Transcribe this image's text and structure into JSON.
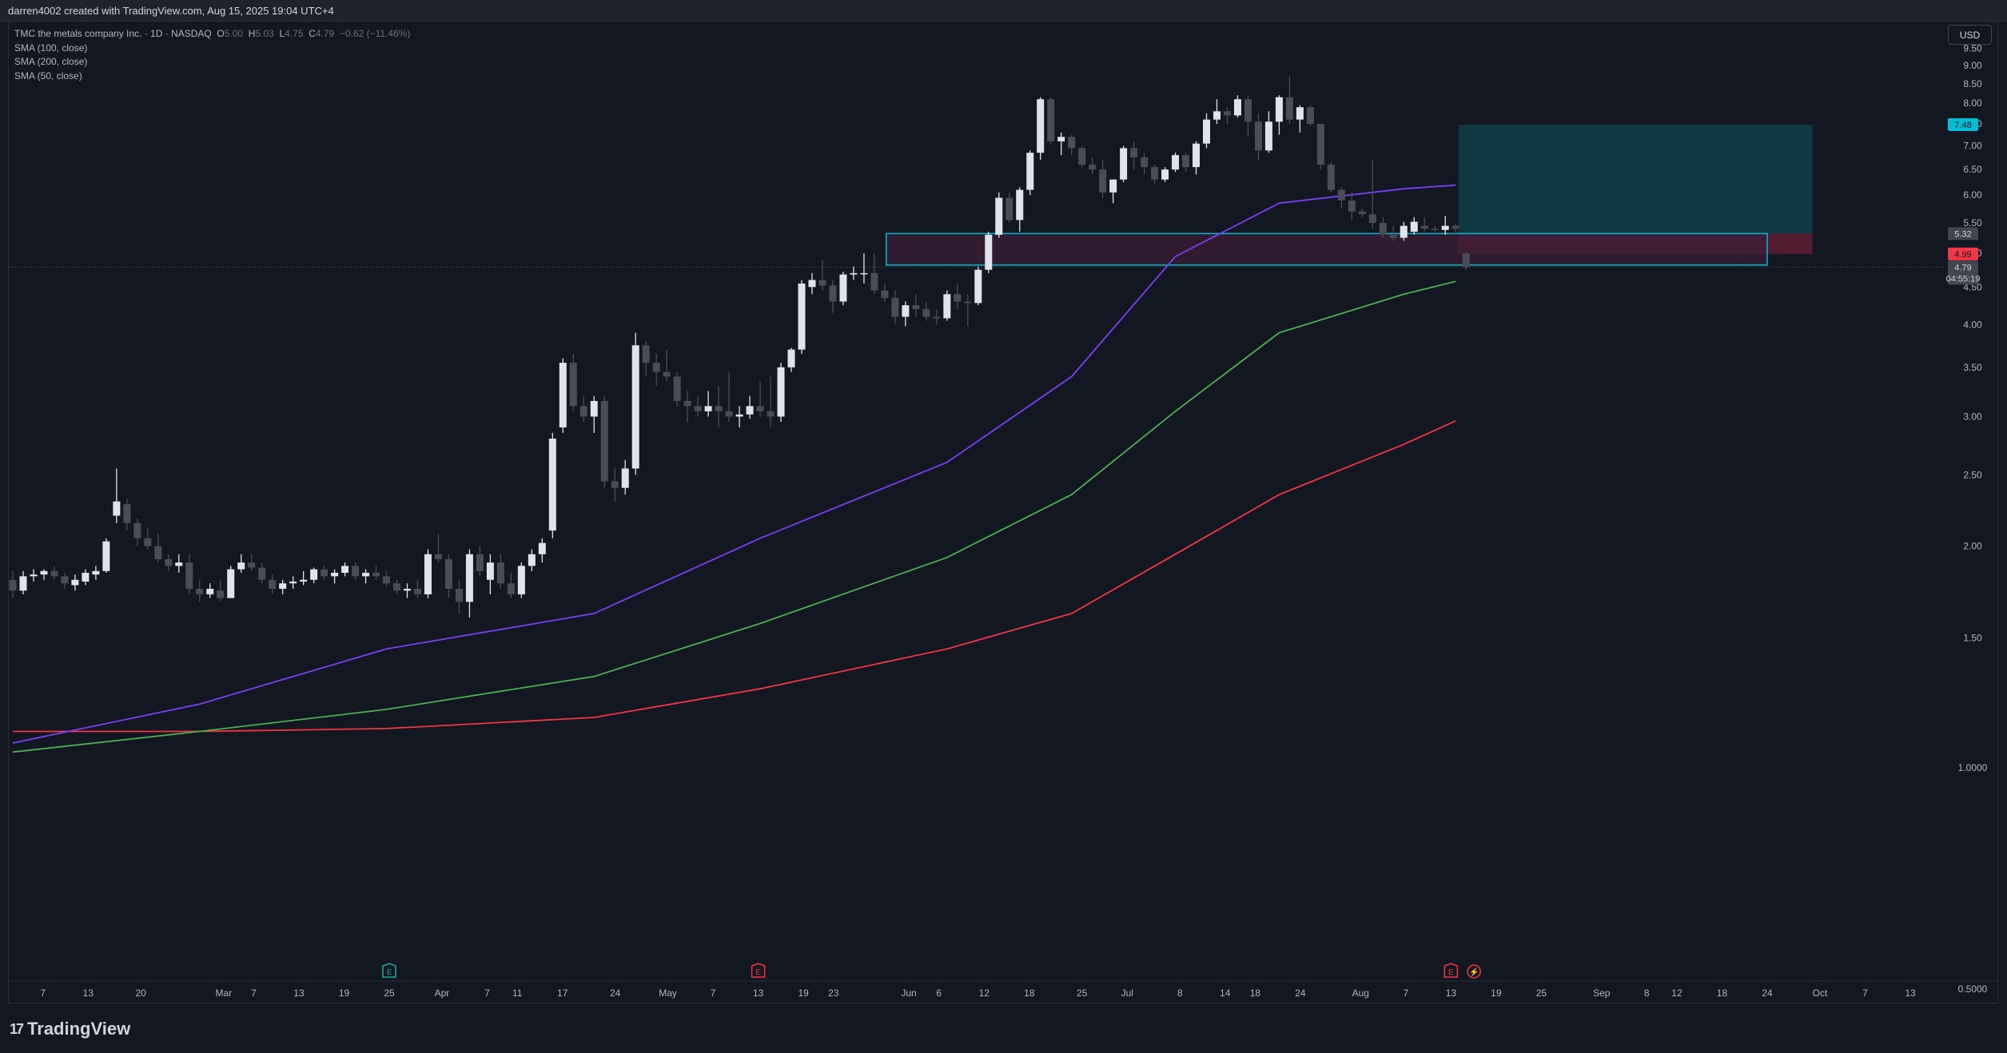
{
  "header": {
    "credit": "darren4002 created with TradingView.com, Aug 15, 2025 19:04 UTC+4"
  },
  "legend": {
    "symbol": "TMC the metals company Inc. · 1D · NASDAQ",
    "o_label": "O",
    "o_value": "5.00",
    "h_label": "H",
    "h_value": "5.03",
    "l_label": "L",
    "l_value": "4.75",
    "c_label": "C",
    "c_value": "4.79",
    "change": "−0.62 (−11.46%)",
    "indicators": [
      "SMA (100, close)",
      "SMA (200, close)",
      "SMA (50, close)"
    ]
  },
  "currency": "USD",
  "brand": {
    "name": "TradingView",
    "mark": "17"
  },
  "colors": {
    "background": "#131722",
    "bull": "#e0e3eb",
    "bear": "#4a4d57",
    "sma50": "#7b3ff2",
    "sma100": "#4caf50",
    "sma200": "#f23645",
    "zone_border": "#00bcd4",
    "zone_fill": "#3b1e36",
    "target_fill": "#0f3a45",
    "stop_fill": "#5a1d33",
    "price_tag_target": "#00bcd4",
    "price_tag_stop": "#f23645",
    "price_tag_neutral": "#434651"
  },
  "chart_data": {
    "type": "candlestick",
    "title": "",
    "symbol": "TMC",
    "interval": "1D",
    "exchange": "NASDAQ",
    "y_scale": "log",
    "ylim": [
      0.5,
      10.2
    ],
    "y_ticks": [
      0.5,
      1.0,
      1.5,
      2.0,
      2.5,
      3.0,
      3.5,
      4.0,
      4.5,
      5.0,
      5.5,
      6.0,
      6.5,
      7.0,
      7.5,
      8.0,
      8.5,
      9.0,
      9.5
    ],
    "y_tick_labels": [
      "0.5000",
      "1.0000",
      "1.50",
      "2.00",
      "2.50",
      "3.00",
      "3.50",
      "4.00",
      "4.50",
      "5.00",
      "5.50",
      "6.00",
      "6.50",
      "7.00",
      "7.50",
      "8.00",
      "8.50",
      "9.00",
      "9.50"
    ],
    "x_ticks": [
      {
        "label": "7",
        "date": "2025-02-07"
      },
      {
        "label": "13",
        "date": "2025-02-13"
      },
      {
        "label": "20",
        "date": "2025-02-20"
      },
      {
        "label": "Mar",
        "date": "2025-03-03"
      },
      {
        "label": "7",
        "date": "2025-03-07"
      },
      {
        "label": "13",
        "date": "2025-03-13"
      },
      {
        "label": "19",
        "date": "2025-03-19"
      },
      {
        "label": "25",
        "date": "2025-03-25"
      },
      {
        "label": "Apr",
        "date": "2025-04-01"
      },
      {
        "label": "7",
        "date": "2025-04-07"
      },
      {
        "label": "11",
        "date": "2025-04-11"
      },
      {
        "label": "17",
        "date": "2025-04-17"
      },
      {
        "label": "24",
        "date": "2025-04-24"
      },
      {
        "label": "May",
        "date": "2025-05-01"
      },
      {
        "label": "7",
        "date": "2025-05-07"
      },
      {
        "label": "13",
        "date": "2025-05-13"
      },
      {
        "label": "19",
        "date": "2025-05-19"
      },
      {
        "label": "23",
        "date": "2025-05-23"
      },
      {
        "label": "Jun",
        "date": "2025-06-02"
      },
      {
        "label": "6",
        "date": "2025-06-06"
      },
      {
        "label": "12",
        "date": "2025-06-12"
      },
      {
        "label": "18",
        "date": "2025-06-18"
      },
      {
        "label": "25",
        "date": "2025-06-25"
      },
      {
        "label": "Jul",
        "date": "2025-07-01"
      },
      {
        "label": "8",
        "date": "2025-07-08"
      },
      {
        "label": "14",
        "date": "2025-07-14"
      },
      {
        "label": "18",
        "date": "2025-07-18"
      },
      {
        "label": "24",
        "date": "2025-07-24"
      },
      {
        "label": "Aug",
        "date": "2025-08-01"
      },
      {
        "label": "7",
        "date": "2025-08-07"
      },
      {
        "label": "13",
        "date": "2025-08-13"
      },
      {
        "label": "19",
        "date": "2025-08-19"
      },
      {
        "label": "25",
        "date": "2025-08-25"
      },
      {
        "label": "Sep",
        "date": "2025-09-02"
      },
      {
        "label": "8",
        "date": "2025-09-08"
      },
      {
        "label": "12",
        "date": "2025-09-12"
      },
      {
        "label": "18",
        "date": "2025-09-18"
      },
      {
        "label": "24",
        "date": "2025-09-24"
      },
      {
        "label": "Oct",
        "date": "2025-10-01"
      },
      {
        "label": "7",
        "date": "2025-10-07"
      },
      {
        "label": "13",
        "date": "2025-10-13"
      }
    ],
    "candles": [
      [
        "2025-02-03",
        1.8,
        1.85,
        1.7,
        1.74
      ],
      [
        "2025-02-04",
        1.74,
        1.85,
        1.72,
        1.82
      ],
      [
        "2025-02-05",
        1.82,
        1.86,
        1.79,
        1.83
      ],
      [
        "2025-02-06",
        1.83,
        1.86,
        1.8,
        1.85
      ],
      [
        "2025-02-07",
        1.85,
        1.88,
        1.8,
        1.82
      ],
      [
        "2025-02-10",
        1.82,
        1.84,
        1.75,
        1.78
      ],
      [
        "2025-02-11",
        1.77,
        1.83,
        1.74,
        1.8
      ],
      [
        "2025-02-12",
        1.79,
        1.86,
        1.77,
        1.84
      ],
      [
        "2025-02-13",
        1.83,
        1.88,
        1.8,
        1.85
      ],
      [
        "2025-02-14",
        1.85,
        2.05,
        1.84,
        2.03
      ],
      [
        "2025-02-18",
        2.2,
        2.55,
        2.15,
        2.3
      ],
      [
        "2025-02-19",
        2.28,
        2.32,
        2.1,
        2.15
      ],
      [
        "2025-02-20",
        2.15,
        2.18,
        2.0,
        2.05
      ],
      [
        "2025-02-21",
        2.05,
        2.12,
        1.98,
        2.0
      ],
      [
        "2025-02-24",
        2.0,
        2.08,
        1.9,
        1.92
      ],
      [
        "2025-02-25",
        1.92,
        1.95,
        1.85,
        1.88
      ],
      [
        "2025-02-26",
        1.88,
        1.95,
        1.84,
        1.9
      ],
      [
        "2025-02-27",
        1.9,
        1.95,
        1.72,
        1.75
      ],
      [
        "2025-02-28",
        1.75,
        1.8,
        1.68,
        1.72
      ],
      [
        "2025-03-03",
        1.72,
        1.78,
        1.7,
        1.75
      ],
      [
        "2025-03-04",
        1.74,
        1.8,
        1.68,
        1.7
      ],
      [
        "2025-03-05",
        1.7,
        1.88,
        1.7,
        1.86
      ],
      [
        "2025-03-06",
        1.86,
        1.95,
        1.84,
        1.9
      ],
      [
        "2025-03-07",
        1.9,
        1.95,
        1.85,
        1.87
      ],
      [
        "2025-03-10",
        1.87,
        1.9,
        1.78,
        1.8
      ],
      [
        "2025-03-11",
        1.8,
        1.83,
        1.72,
        1.75
      ],
      [
        "2025-03-12",
        1.75,
        1.8,
        1.72,
        1.78
      ],
      [
        "2025-03-13",
        1.78,
        1.82,
        1.75,
        1.79
      ],
      [
        "2025-03-14",
        1.79,
        1.85,
        1.77,
        1.8
      ],
      [
        "2025-03-17",
        1.8,
        1.87,
        1.78,
        1.86
      ],
      [
        "2025-03-18",
        1.86,
        1.88,
        1.8,
        1.82
      ],
      [
        "2025-03-19",
        1.82,
        1.86,
        1.78,
        1.84
      ],
      [
        "2025-03-20",
        1.84,
        1.9,
        1.82,
        1.88
      ],
      [
        "2025-03-21",
        1.88,
        1.9,
        1.8,
        1.82
      ],
      [
        "2025-03-24",
        1.82,
        1.86,
        1.78,
        1.84
      ],
      [
        "2025-03-25",
        1.84,
        1.88,
        1.8,
        1.82
      ],
      [
        "2025-03-26",
        1.82,
        1.85,
        1.76,
        1.78
      ],
      [
        "2025-03-27",
        1.78,
        1.8,
        1.72,
        1.74
      ],
      [
        "2025-03-28",
        1.74,
        1.78,
        1.7,
        1.75
      ],
      [
        "2025-03-31",
        1.75,
        1.8,
        1.7,
        1.72
      ],
      [
        "2025-04-01",
        1.72,
        1.98,
        1.7,
        1.95
      ],
      [
        "2025-04-02",
        1.95,
        2.08,
        1.9,
        1.92
      ],
      [
        "2025-04-03",
        1.92,
        1.95,
        1.7,
        1.75
      ],
      [
        "2025-04-04",
        1.75,
        1.8,
        1.62,
        1.68
      ],
      [
        "2025-04-07",
        1.68,
        1.98,
        1.6,
        1.95
      ],
      [
        "2025-04-08",
        1.95,
        2.0,
        1.82,
        1.85
      ],
      [
        "2025-04-09",
        1.8,
        1.95,
        1.72,
        1.9
      ],
      [
        "2025-04-10",
        1.9,
        1.95,
        1.75,
        1.78
      ],
      [
        "2025-04-11",
        1.78,
        1.84,
        1.7,
        1.72
      ],
      [
        "2025-04-14",
        1.72,
        1.9,
        1.7,
        1.88
      ],
      [
        "2025-04-15",
        1.88,
        1.98,
        1.85,
        1.95
      ],
      [
        "2025-04-16",
        1.95,
        2.05,
        1.9,
        2.02
      ],
      [
        "2025-04-17",
        2.1,
        2.85,
        2.05,
        2.8
      ],
      [
        "2025-04-21",
        2.9,
        3.6,
        2.85,
        3.55
      ],
      [
        "2025-04-22",
        3.55,
        3.65,
        3.05,
        3.1
      ],
      [
        "2025-04-23",
        3.1,
        3.2,
        2.95,
        3.0
      ],
      [
        "2025-04-24",
        3.0,
        3.2,
        2.85,
        3.15
      ],
      [
        "2025-04-25",
        3.15,
        3.2,
        2.4,
        2.45
      ],
      [
        "2025-04-28",
        2.45,
        2.55,
        2.3,
        2.4
      ],
      [
        "2025-04-29",
        2.4,
        2.62,
        2.35,
        2.55
      ],
      [
        "2025-04-30",
        2.55,
        3.9,
        2.5,
        3.75
      ],
      [
        "2025-05-01",
        3.75,
        3.8,
        3.4,
        3.55
      ],
      [
        "2025-05-02",
        3.55,
        3.65,
        3.3,
        3.45
      ],
      [
        "2025-05-05",
        3.45,
        3.7,
        3.35,
        3.4
      ],
      [
        "2025-05-06",
        3.4,
        3.45,
        3.1,
        3.15
      ],
      [
        "2025-05-07",
        3.15,
        3.25,
        2.95,
        3.1
      ],
      [
        "2025-05-08",
        3.1,
        3.2,
        3.0,
        3.05
      ],
      [
        "2025-05-09",
        3.05,
        3.25,
        3.0,
        3.1
      ],
      [
        "2025-05-12",
        3.1,
        3.3,
        2.9,
        3.05
      ],
      [
        "2025-05-13",
        3.05,
        3.45,
        2.95,
        3.0
      ],
      [
        "2025-05-14",
        3.0,
        3.1,
        2.9,
        3.02
      ],
      [
        "2025-05-15",
        3.02,
        3.2,
        2.98,
        3.1
      ],
      [
        "2025-05-16",
        3.1,
        3.35,
        3.0,
        3.05
      ],
      [
        "2025-05-19",
        3.05,
        3.4,
        2.9,
        3.0
      ],
      [
        "2025-05-20",
        3.0,
        3.55,
        2.95,
        3.5
      ],
      [
        "2025-05-21",
        3.5,
        3.72,
        3.45,
        3.7
      ],
      [
        "2025-05-22",
        3.7,
        4.6,
        3.65,
        4.55
      ],
      [
        "2025-05-23",
        4.5,
        4.7,
        4.4,
        4.6
      ],
      [
        "2025-05-27",
        4.6,
        4.9,
        4.45,
        4.52
      ],
      [
        "2025-05-28",
        4.52,
        4.6,
        4.15,
        4.3
      ],
      [
        "2025-05-29",
        4.3,
        4.72,
        4.25,
        4.68
      ],
      [
        "2025-05-30",
        4.68,
        4.8,
        4.6,
        4.7
      ],
      [
        "2025-06-02",
        4.7,
        5.0,
        4.55,
        4.7
      ],
      [
        "2025-06-03",
        4.7,
        5.0,
        4.4,
        4.45
      ],
      [
        "2025-06-04",
        4.45,
        4.55,
        4.3,
        4.35
      ],
      [
        "2025-06-05",
        4.35,
        4.45,
        4.0,
        4.1
      ],
      [
        "2025-06-06",
        4.1,
        4.3,
        3.98,
        4.25
      ],
      [
        "2025-06-09",
        4.25,
        4.4,
        4.1,
        4.2
      ],
      [
        "2025-06-10",
        4.2,
        4.3,
        4.05,
        4.1
      ],
      [
        "2025-06-11",
        4.1,
        4.2,
        4.0,
        4.08
      ],
      [
        "2025-06-12",
        4.08,
        4.45,
        4.05,
        4.4
      ],
      [
        "2025-06-13",
        4.4,
        4.55,
        4.2,
        4.3
      ],
      [
        "2025-06-16",
        4.3,
        4.4,
        3.98,
        4.28
      ],
      [
        "2025-06-17",
        4.28,
        4.8,
        4.25,
        4.75
      ],
      [
        "2025-06-18",
        4.75,
        5.35,
        4.7,
        5.3
      ],
      [
        "2025-06-20",
        5.3,
        6.05,
        5.25,
        5.95
      ],
      [
        "2025-06-23",
        5.95,
        6.05,
        5.5,
        5.55
      ],
      [
        "2025-06-24",
        5.55,
        6.15,
        5.35,
        6.1
      ],
      [
        "2025-06-25",
        6.1,
        6.9,
        6.0,
        6.85
      ],
      [
        "2025-06-26",
        6.85,
        8.15,
        6.7,
        8.1
      ],
      [
        "2025-06-27",
        8.1,
        8.15,
        7.05,
        7.1
      ],
      [
        "2025-06-30",
        7.1,
        7.3,
        6.8,
        7.2
      ],
      [
        "2025-07-01",
        7.2,
        7.25,
        6.8,
        6.95
      ],
      [
        "2025-07-02",
        6.95,
        7.0,
        6.55,
        6.6
      ],
      [
        "2025-07-03",
        6.6,
        6.75,
        6.4,
        6.5
      ],
      [
        "2025-07-07",
        6.5,
        6.7,
        5.95,
        6.05
      ],
      [
        "2025-07-08",
        6.05,
        6.3,
        5.85,
        6.3
      ],
      [
        "2025-07-09",
        6.3,
        7.0,
        6.25,
        6.95
      ],
      [
        "2025-07-10",
        6.95,
        7.1,
        6.5,
        6.75
      ],
      [
        "2025-07-11",
        6.75,
        6.85,
        6.4,
        6.55
      ],
      [
        "2025-07-14",
        6.55,
        6.6,
        6.2,
        6.3
      ],
      [
        "2025-07-15",
        6.3,
        6.55,
        6.25,
        6.5
      ],
      [
        "2025-07-16",
        6.5,
        6.85,
        6.45,
        6.8
      ],
      [
        "2025-07-17",
        6.8,
        6.85,
        6.45,
        6.55
      ],
      [
        "2025-07-18",
        6.55,
        7.1,
        6.4,
        7.05
      ],
      [
        "2025-07-21",
        7.05,
        7.75,
        6.95,
        7.6
      ],
      [
        "2025-07-22",
        7.6,
        8.1,
        7.5,
        7.8
      ],
      [
        "2025-07-23",
        7.8,
        7.9,
        7.5,
        7.7
      ],
      [
        "2025-07-24",
        7.7,
        8.2,
        7.65,
        8.1
      ],
      [
        "2025-07-25",
        8.1,
        8.2,
        7.2,
        7.55
      ],
      [
        "2025-07-28",
        7.55,
        7.75,
        6.7,
        6.9
      ],
      [
        "2025-07-29",
        6.9,
        7.8,
        6.85,
        7.55
      ],
      [
        "2025-07-30",
        7.55,
        8.2,
        7.25,
        8.15
      ],
      [
        "2025-07-31",
        8.15,
        8.7,
        7.5,
        7.6
      ],
      [
        "2025-08-01",
        7.6,
        7.95,
        7.3,
        7.9
      ],
      [
        "2025-08-04",
        7.9,
        7.95,
        7.45,
        7.5
      ],
      [
        "2025-08-05",
        7.5,
        7.5,
        6.5,
        6.6
      ],
      [
        "2025-08-06",
        6.6,
        6.65,
        6.05,
        6.1
      ],
      [
        "2025-08-07",
        6.1,
        6.15,
        5.75,
        5.9
      ],
      [
        "2025-08-08",
        5.9,
        6.05,
        5.55,
        5.7
      ],
      [
        "2025-08-11",
        5.7,
        5.75,
        5.6,
        5.65
      ],
      [
        "2025-08-12",
        5.65,
        6.7,
        5.4,
        5.5
      ],
      [
        "2025-08-13",
        5.5,
        5.6,
        5.25,
        5.3
      ],
      [
        "2025-08-14",
        5.3,
        5.45,
        5.2,
        5.25
      ],
      [
        "2025-08-14b",
        5.25,
        5.52,
        5.2,
        5.45
      ],
      [
        "2025-08-14c",
        5.35,
        5.6,
        5.3,
        5.52
      ],
      [
        "2025-08-14d",
        5.45,
        5.6,
        5.35,
        5.4
      ],
      [
        "2025-08-14e",
        5.4,
        5.45,
        5.35,
        5.38
      ],
      [
        "2025-08-14f",
        5.38,
        5.62,
        5.3,
        5.45
      ],
      [
        "2025-08-14g",
        5.45,
        5.48,
        5.3,
        5.4
      ],
      [
        "2025-08-15",
        5.0,
        5.03,
        4.75,
        4.79
      ]
    ],
    "sma_50": [
      [
        0,
        1.08
      ],
      [
        18,
        1.22
      ],
      [
        36,
        1.45
      ],
      [
        56,
        1.62
      ],
      [
        72,
        2.05
      ],
      [
        90,
        2.6
      ],
      [
        102,
        3.4
      ],
      [
        112,
        4.95
      ],
      [
        122,
        5.85
      ],
      [
        134,
        6.12
      ],
      [
        139,
        6.19
      ]
    ],
    "sma_100": [
      [
        0,
        1.05
      ],
      [
        18,
        1.12
      ],
      [
        36,
        1.2
      ],
      [
        56,
        1.33
      ],
      [
        72,
        1.57
      ],
      [
        90,
        1.93
      ],
      [
        102,
        2.35
      ],
      [
        112,
        3.05
      ],
      [
        122,
        3.9
      ],
      [
        134,
        4.4
      ],
      [
        139,
        4.58
      ]
    ],
    "sma_200": [
      [
        0,
        1.12
      ],
      [
        18,
        1.12
      ],
      [
        36,
        1.13
      ],
      [
        56,
        1.17
      ],
      [
        72,
        1.28
      ],
      [
        90,
        1.45
      ],
      [
        102,
        1.62
      ],
      [
        112,
        1.95
      ],
      [
        122,
        2.35
      ],
      [
        134,
        2.75
      ],
      [
        139,
        2.96
      ]
    ],
    "zone": {
      "from_date": "2025-05-30",
      "to_date": "2025-09-24",
      "top": 5.32,
      "bottom": 4.82
    },
    "position": {
      "entry": 5.32,
      "target": 7.48,
      "stop": 4.99,
      "from_date": "2025-08-14",
      "to_date": "2025-09-30"
    },
    "price_labels": {
      "target": "7.48",
      "entry": "5.32",
      "stop": "4.99",
      "last": "4.79",
      "countdown": "04:55:19"
    },
    "events": [
      {
        "date": "2025-03-25",
        "symbol": "E",
        "kind": "earnings-green"
      },
      {
        "date": "2025-05-13",
        "symbol": "E",
        "kind": "earnings-red"
      },
      {
        "date": "2025-08-13",
        "symbol": "E",
        "kind": "earnings-red"
      },
      {
        "date": "2025-08-15",
        "symbol": "⚡",
        "kind": "split"
      }
    ]
  }
}
